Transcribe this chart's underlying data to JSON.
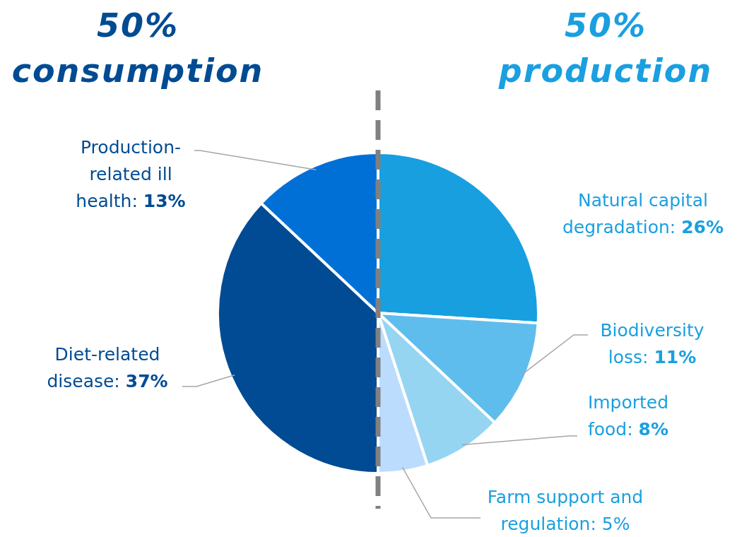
{
  "chart_data": {
    "type": "pie",
    "categories": [
      "Natural capital degradation: 26%",
      "Biodiversity loss: 11%",
      "Imported food: 8%",
      "Farm support and regulation: 5%",
      "Diet-related disease: 37%",
      "Production-related ill health: 13%"
    ],
    "values": [
      26,
      11,
      8,
      5,
      37,
      13
    ],
    "colors": [
      "#179fe0",
      "#5fbdee",
      "#95d5f2",
      "#bcdcfd",
      "#004b93",
      "#0070d6"
    ],
    "annotations": [
      "50% consumption",
      "50% production"
    ]
  }
}
